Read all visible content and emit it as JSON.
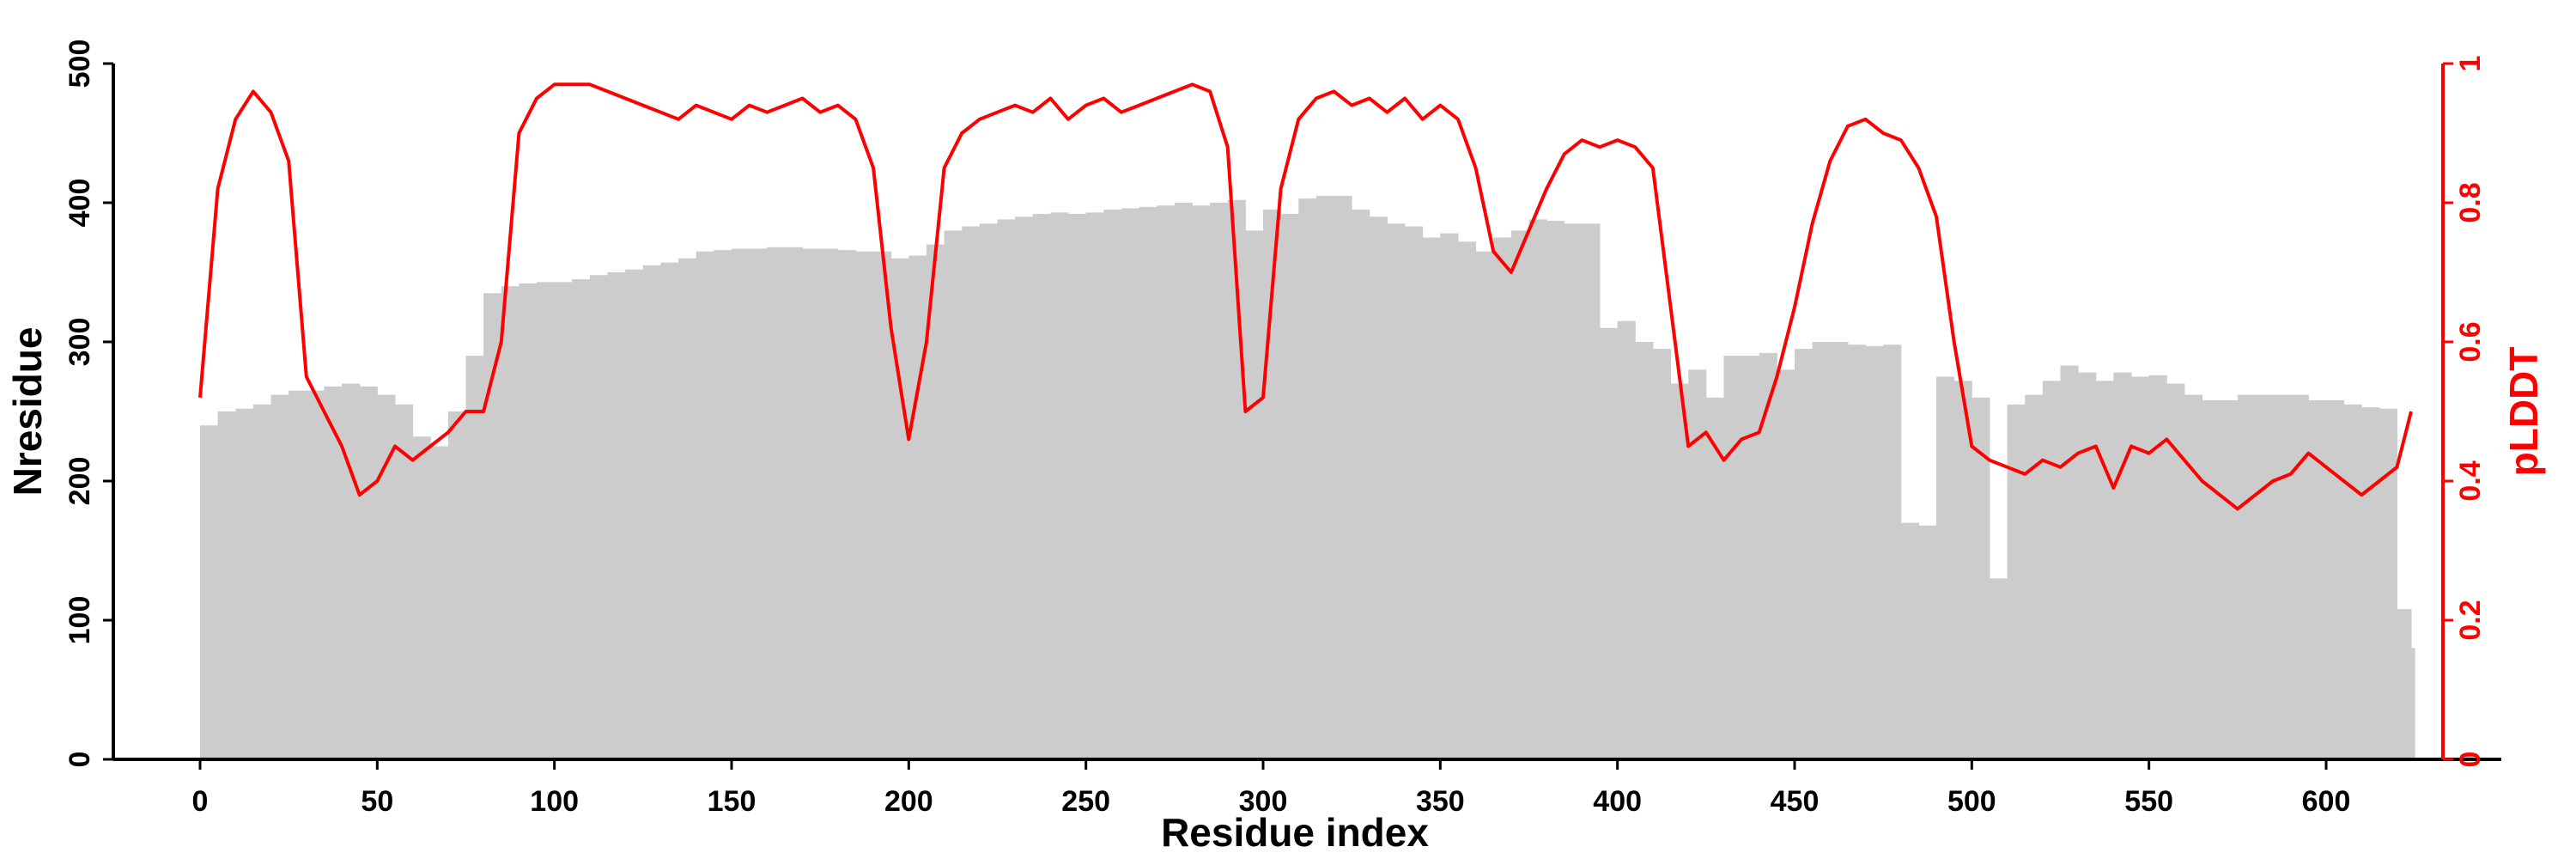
{
  "chart_data": {
    "type": "bar+line",
    "xlabel": "Residue index",
    "ylabel_left": "Nresidue",
    "ylabel_right": "pLDDT",
    "xlim": [
      0,
      625
    ],
    "ylim_left": [
      0,
      500
    ],
    "ylim_right": [
      0,
      1
    ],
    "x_ticks": [
      "0",
      "50",
      "100",
      "150",
      "200",
      "250",
      "300",
      "350",
      "400",
      "450",
      "500",
      "550",
      "600"
    ],
    "y_ticks_left": [
      "0",
      "100",
      "200",
      "300",
      "400",
      "500"
    ],
    "y_ticks_right": [
      "0",
      "0.2",
      "0.4",
      "0.6",
      "0.8",
      "1"
    ],
    "colors": {
      "bars": "#cccccc",
      "line": "#ff0000",
      "axis_left": "#000000",
      "axis_right": "#ff0000"
    },
    "grid": false,
    "x": [
      0,
      5,
      10,
      15,
      20,
      25,
      30,
      35,
      40,
      45,
      50,
      55,
      60,
      65,
      70,
      75,
      80,
      85,
      90,
      95,
      100,
      105,
      110,
      115,
      120,
      125,
      130,
      135,
      140,
      145,
      150,
      155,
      160,
      165,
      170,
      175,
      180,
      185,
      190,
      195,
      200,
      205,
      210,
      215,
      220,
      225,
      230,
      235,
      240,
      245,
      250,
      255,
      260,
      265,
      270,
      275,
      280,
      285,
      290,
      295,
      300,
      305,
      310,
      315,
      320,
      325,
      330,
      335,
      340,
      345,
      350,
      355,
      360,
      365,
      370,
      375,
      380,
      385,
      390,
      395,
      400,
      405,
      410,
      415,
      420,
      425,
      430,
      435,
      440,
      445,
      450,
      455,
      460,
      465,
      470,
      475,
      480,
      485,
      490,
      495,
      500,
      505,
      510,
      515,
      520,
      525,
      530,
      535,
      540,
      545,
      550,
      555,
      560,
      565,
      570,
      575,
      580,
      585,
      590,
      595,
      600,
      605,
      610,
      615,
      620,
      624
    ],
    "series": [
      {
        "name": "Nresidue",
        "axis": "left",
        "kind": "bar",
        "values": [
          240,
          250,
          252,
          255,
          262,
          265,
          265,
          268,
          270,
          268,
          262,
          255,
          232,
          225,
          250,
          290,
          335,
          340,
          342,
          343,
          343,
          345,
          348,
          350,
          352,
          355,
          357,
          360,
          365,
          366,
          367,
          367,
          368,
          368,
          367,
          367,
          366,
          365,
          365,
          360,
          362,
          370,
          380,
          383,
          385,
          388,
          390,
          392,
          393,
          392,
          393,
          395,
          396,
          397,
          398,
          400,
          398,
          400,
          402,
          380,
          395,
          392,
          403,
          405,
          405,
          395,
          390,
          385,
          383,
          375,
          378,
          372,
          365,
          375,
          380,
          388,
          387,
          385,
          385,
          310,
          315,
          300,
          295,
          270,
          280,
          260,
          290,
          290,
          292,
          280,
          295,
          300,
          300,
          298,
          297,
          298,
          170,
          168,
          275,
          272,
          260,
          130,
          255,
          262,
          272,
          283,
          278,
          272,
          278,
          275,
          276,
          270,
          262,
          258,
          258,
          262,
          262,
          262,
          262,
          258,
          258,
          255,
          253,
          252,
          108,
          80
        ]
      },
      {
        "name": "pLDDT",
        "axis": "right",
        "kind": "line",
        "values": [
          0.52,
          0.82,
          0.92,
          0.96,
          0.93,
          0.86,
          0.55,
          0.5,
          0.45,
          0.38,
          0.4,
          0.45,
          0.43,
          0.45,
          0.47,
          0.5,
          0.5,
          0.6,
          0.9,
          0.95,
          0.97,
          0.97,
          0.97,
          0.96,
          0.95,
          0.94,
          0.93,
          0.92,
          0.94,
          0.93,
          0.92,
          0.94,
          0.93,
          0.94,
          0.95,
          0.93,
          0.94,
          0.92,
          0.85,
          0.62,
          0.46,
          0.6,
          0.85,
          0.9,
          0.92,
          0.93,
          0.94,
          0.93,
          0.95,
          0.92,
          0.94,
          0.95,
          0.93,
          0.94,
          0.95,
          0.96,
          0.97,
          0.96,
          0.88,
          0.5,
          0.52,
          0.82,
          0.92,
          0.95,
          0.96,
          0.94,
          0.95,
          0.93,
          0.95,
          0.92,
          0.94,
          0.92,
          0.85,
          0.73,
          0.7,
          0.76,
          0.82,
          0.87,
          0.89,
          0.88,
          0.89,
          0.88,
          0.85,
          0.65,
          0.45,
          0.47,
          0.43,
          0.46,
          0.47,
          0.55,
          0.65,
          0.77,
          0.86,
          0.91,
          0.92,
          0.9,
          0.89,
          0.85,
          0.78,
          0.6,
          0.45,
          0.43,
          0.42,
          0.41,
          0.43,
          0.42,
          0.44,
          0.45,
          0.39,
          0.45,
          0.44,
          0.46,
          0.43,
          0.4,
          0.38,
          0.36,
          0.38,
          0.4,
          0.41,
          0.44,
          0.42,
          0.4,
          0.38,
          0.4,
          0.42,
          0.5
        ]
      }
    ]
  }
}
